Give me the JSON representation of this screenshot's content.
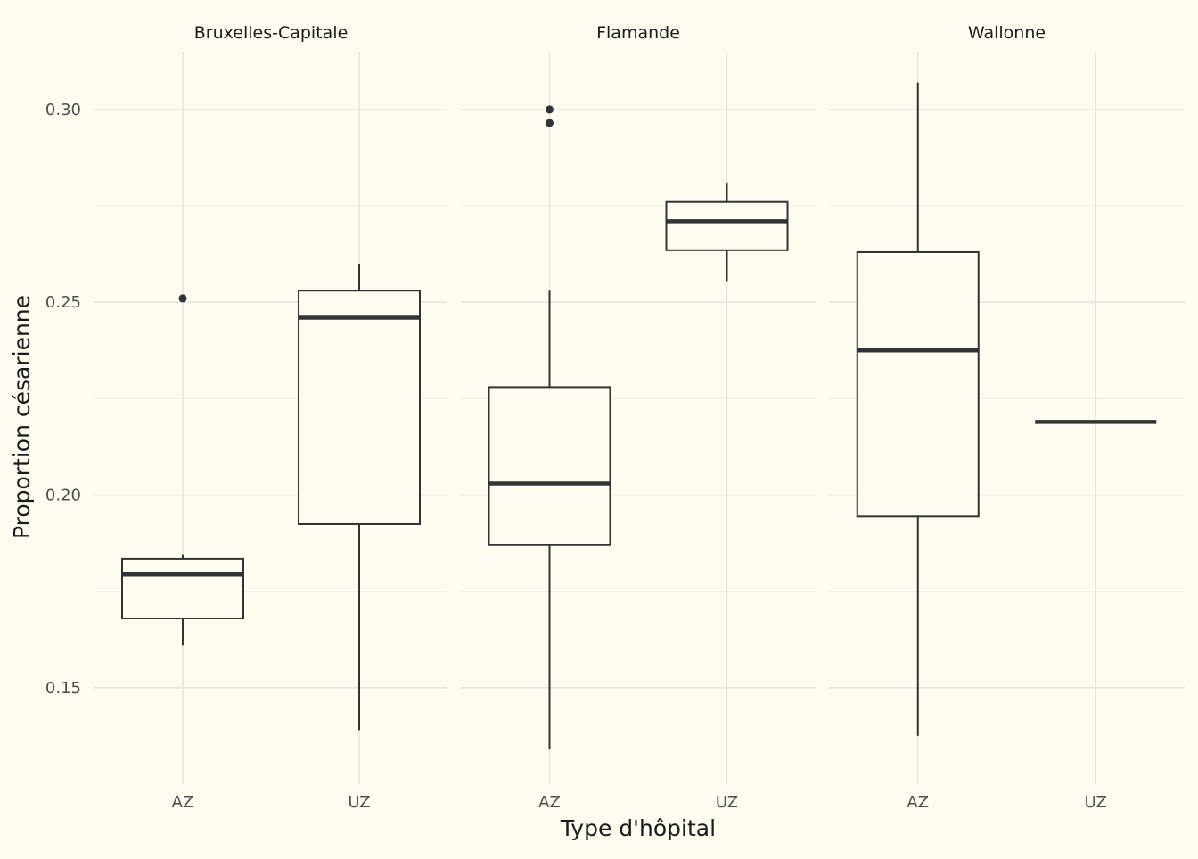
{
  "chart_data": {
    "type": "boxplot",
    "xlabel": "Type d'hôpital",
    "ylabel": "Proportion césarienne",
    "ylim": [
      0.125,
      0.315
    ],
    "yticks": [
      0.15,
      0.2,
      0.25,
      0.3
    ],
    "ytick_labels": [
      "0.15",
      "0.20",
      "0.25",
      "0.30"
    ],
    "categories": [
      "AZ",
      "UZ"
    ],
    "grid": true,
    "facets": [
      {
        "label": "Bruxelles-Capitale",
        "boxes": [
          {
            "category": "AZ",
            "whisker_low": 0.161,
            "q1": 0.168,
            "median": 0.1795,
            "q3": 0.1835,
            "whisker_high": 0.1845,
            "outliers": [
              0.251
            ]
          },
          {
            "category": "UZ",
            "whisker_low": 0.139,
            "q1": 0.1925,
            "median": 0.246,
            "q3": 0.253,
            "whisker_high": 0.26,
            "outliers": []
          }
        ]
      },
      {
        "label": "Flamande",
        "boxes": [
          {
            "category": "AZ",
            "whisker_low": 0.134,
            "q1": 0.187,
            "median": 0.203,
            "q3": 0.228,
            "whisker_high": 0.253,
            "outliers": [
              0.3,
              0.2965
            ]
          },
          {
            "category": "UZ",
            "whisker_low": 0.2555,
            "q1": 0.2635,
            "median": 0.271,
            "q3": 0.276,
            "whisker_high": 0.281,
            "outliers": []
          }
        ]
      },
      {
        "label": "Wallonne",
        "boxes": [
          {
            "category": "AZ",
            "whisker_low": 0.1375,
            "q1": 0.1945,
            "median": 0.2375,
            "q3": 0.263,
            "whisker_high": 0.307,
            "outliers": []
          },
          {
            "category": "UZ",
            "whisker_low": 0.219,
            "q1": 0.219,
            "median": 0.219,
            "q3": 0.219,
            "whisker_high": 0.219,
            "outliers": []
          }
        ]
      }
    ]
  }
}
